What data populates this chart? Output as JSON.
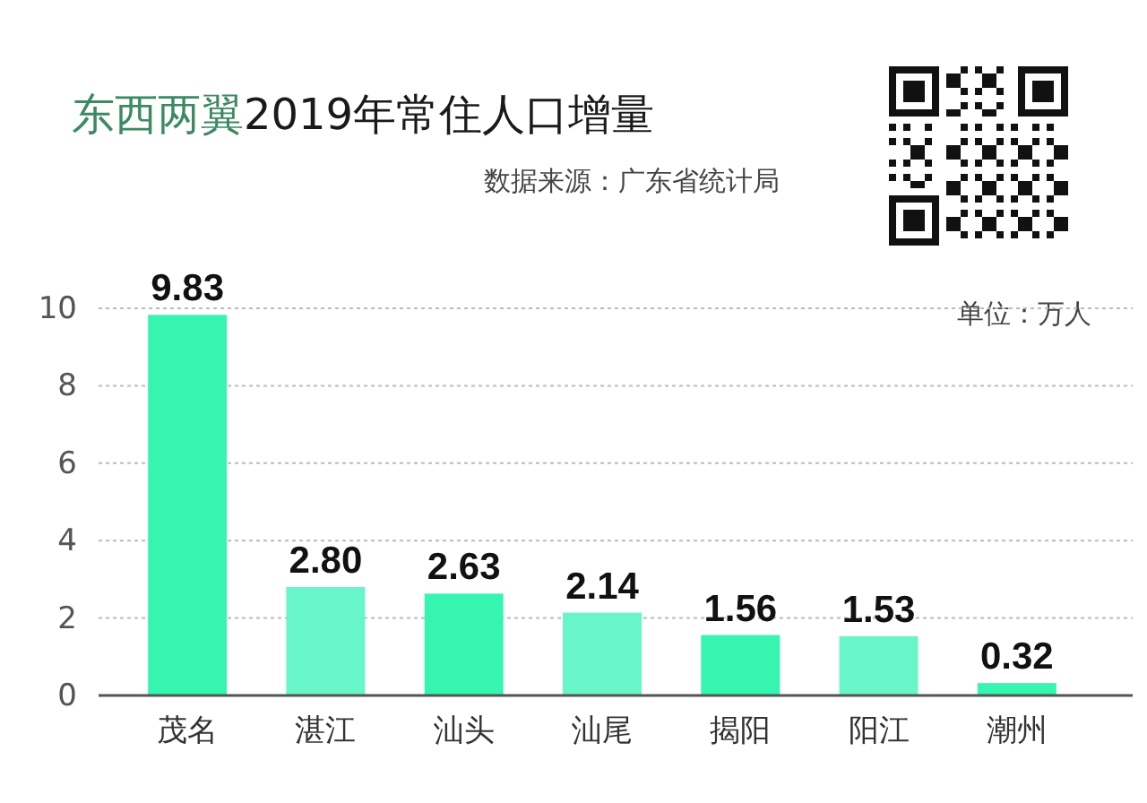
{
  "chart_data": {
    "type": "bar",
    "title": "东西两翼2019年常住人口增量",
    "annotations": [
      "数据来源：广东省统计局",
      "单位：万人"
    ],
    "categories": [
      "茂名",
      "湛江",
      "汕头",
      "汕尾",
      "揭阳",
      "阳江",
      "潮州"
    ],
    "values": [
      9.83,
      2.8,
      2.63,
      2.14,
      1.56,
      1.53,
      0.32
    ],
    "value_labels": [
      "9.83",
      "2.80",
      "2.63",
      "2.14",
      "1.56",
      "1.53",
      "0.32"
    ],
    "colors": [
      "#35f5b0",
      "#68f5c8",
      "#35f5b0",
      "#68f5c8",
      "#35f5b0",
      "#68f5c8",
      "#35f5b0"
    ],
    "ylim": [
      0,
      10
    ],
    "yticks": [
      0,
      2,
      4,
      6,
      8,
      10
    ],
    "grid": "y"
  }
}
